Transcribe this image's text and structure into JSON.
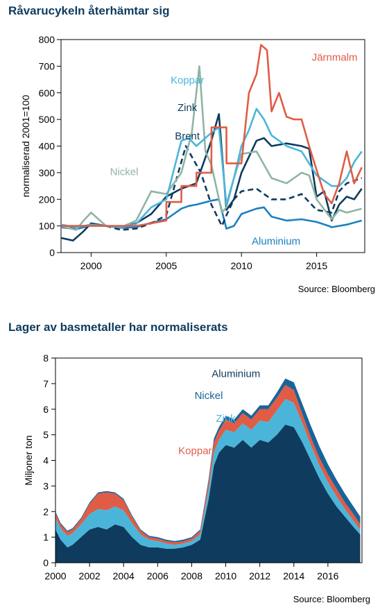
{
  "chart_data": [
    {
      "type": "line",
      "title": "Råvarucykeln återhämtar sig",
      "ylabel": "normaliserad 2001=100",
      "xlabel": "",
      "xlim": [
        1998,
        2018.2
      ],
      "ylim": [
        0,
        800
      ],
      "xticks": [
        2000,
        2005,
        2010,
        2015
      ],
      "yticks": [
        0,
        100,
        200,
        300,
        400,
        500,
        600,
        700,
        800
      ],
      "source": "Source: Bloomberg",
      "series": [
        {
          "name": "Aluminium",
          "color": "#1b7fc1",
          "dash": false,
          "x": [
            1998,
            1999,
            2000,
            2001,
            2002,
            2003,
            2004,
            2005,
            2006,
            2006.5,
            2007,
            2008,
            2008.5,
            2009,
            2009.5,
            2010,
            2011,
            2011.5,
            2012,
            2013,
            2014,
            2015,
            2015.8,
            2016,
            2017,
            2018
          ],
          "y": [
            95,
            88,
            102,
            100,
            93,
            95,
            112,
            125,
            165,
            175,
            180,
            195,
            200,
            90,
            100,
            145,
            165,
            170,
            135,
            120,
            125,
            115,
            100,
            95,
            105,
            120
          ]
        },
        {
          "name": "Brent",
          "color": "#0e3b5e",
          "dash": false,
          "x": [
            1998,
            1998.8,
            1999.5,
            2000,
            2001,
            2002,
            2003,
            2004,
            2005,
            2006,
            2007,
            2008,
            2008.5,
            2009,
            2009.5,
            2010,
            2011,
            2011.5,
            2012,
            2013,
            2014,
            2014.5,
            2015,
            2015.5,
            2016,
            2016.5,
            2017,
            2017.5,
            2018
          ],
          "y": [
            55,
            45,
            80,
            110,
            100,
            95,
            110,
            145,
            210,
            240,
            260,
            420,
            520,
            160,
            200,
            300,
            420,
            430,
            400,
            410,
            400,
            390,
            210,
            230,
            120,
            180,
            210,
            200,
            240
          ]
        },
        {
          "name": "Zink",
          "color": "#0e3b5e",
          "dash": true,
          "x": [
            1998,
            1999,
            2000,
            2001,
            2002,
            2003,
            2004,
            2005,
            2005.8,
            2006.3,
            2006.8,
            2007.3,
            2008,
            2008.7,
            2009,
            2009.5,
            2010,
            2011,
            2012,
            2013,
            2014,
            2015,
            2016,
            2016.5,
            2017,
            2018
          ],
          "y": [
            100,
            95,
            105,
            100,
            85,
            90,
            110,
            140,
            300,
            400,
            350,
            300,
            180,
            100,
            140,
            200,
            230,
            240,
            200,
            200,
            220,
            160,
            150,
            230,
            260,
            280
          ]
        },
        {
          "name": "Nickel",
          "color": "#8fb4a4",
          "dash": false,
          "x": [
            1998,
            1999,
            1999.5,
            2000,
            2001,
            2002,
            2003,
            2004,
            2005,
            2006,
            2006.7,
            2007.2,
            2007.6,
            2008,
            2008.7,
            2009,
            2009.5,
            2010,
            2011,
            2012,
            2013,
            2014,
            2014.5,
            2015,
            2016,
            2016.5,
            2017,
            2018
          ],
          "y": [
            100,
            85,
            120,
            150,
            100,
            95,
            120,
            230,
            220,
            300,
            450,
            700,
            380,
            330,
            150,
            170,
            280,
            370,
            380,
            280,
            260,
            300,
            290,
            200,
            125,
            160,
            150,
            165
          ]
        },
        {
          "name": "Koppar",
          "color": "#4ab5d9",
          "dash": false,
          "x": [
            1998,
            1999,
            2000,
            2001,
            2002,
            2003,
            2004,
            2005,
            2006,
            2006.5,
            2007,
            2008,
            2008.5,
            2009,
            2009.5,
            2010,
            2010.5,
            2011,
            2011.5,
            2012,
            2013,
            2014,
            2015,
            2016,
            2016.5,
            2017,
            2017.5,
            2018
          ],
          "y": [
            105,
            95,
            105,
            100,
            95,
            108,
            170,
            200,
            420,
            430,
            400,
            450,
            470,
            180,
            280,
            400,
            460,
            540,
            500,
            440,
            400,
            380,
            290,
            250,
            250,
            280,
            340,
            380
          ]
        },
        {
          "name": "Järnmalm",
          "color": "#e05c45",
          "dash": false,
          "x": [
            1998,
            2000,
            2001,
            2002,
            2003,
            2004,
            2005,
            2005.01,
            2006,
            2006.01,
            2007,
            2007.01,
            2008,
            2008.01,
            2009,
            2009.01,
            2010,
            2010.5,
            2011,
            2011.3,
            2011.7,
            2012,
            2012.5,
            2013,
            2013.5,
            2014,
            2014.5,
            2015,
            2015.5,
            2016,
            2016.5,
            2017,
            2017.5,
            2018
          ],
          "y": [
            100,
            100,
            100,
            100,
            100,
            110,
            120,
            190,
            190,
            250,
            250,
            300,
            300,
            470,
            470,
            335,
            335,
            600,
            670,
            780,
            760,
            530,
            600,
            510,
            500,
            500,
            400,
            310,
            220,
            185,
            260,
            380,
            260,
            320
          ]
        }
      ],
      "labels": [
        {
          "text": "Koppar",
          "series": "Koppar",
          "x": 2006.4,
          "y": 635
        },
        {
          "text": "Zink",
          "series": "Zink",
          "x": 2006.4,
          "y": 532
        },
        {
          "text": "Brent",
          "series": "Brent",
          "x": 2006.4,
          "y": 425
        },
        {
          "text": "Nickel",
          "series": "Nickel",
          "x": 2002.2,
          "y": 290
        },
        {
          "text": "Järnmalm",
          "series": "Järnmalm",
          "x": 2016.2,
          "y": 720
        },
        {
          "text": "Aluminium",
          "series": "Aluminium",
          "x": 2012.3,
          "y": 30
        }
      ]
    },
    {
      "type": "area",
      "stacked": true,
      "title": "Lager av basmetaller har normaliserats",
      "ylabel": "Miljoner ton",
      "xlabel": "",
      "xlim": [
        2000,
        2018
      ],
      "ylim": [
        0,
        8
      ],
      "xticks": [
        2000,
        2002,
        2004,
        2006,
        2008,
        2010,
        2012,
        2014,
        2016
      ],
      "yticks": [
        0,
        1,
        2,
        3,
        4,
        5,
        6,
        7,
        8
      ],
      "source": "Source: Bloomberg",
      "x": [
        2000,
        2000.3,
        2000.7,
        2001,
        2001.5,
        2002,
        2002.5,
        2003,
        2003.5,
        2004,
        2004.5,
        2005,
        2005.5,
        2006,
        2006.5,
        2007,
        2007.5,
        2008,
        2008.5,
        2009,
        2009.3,
        2009.6,
        2010,
        2010.5,
        2011,
        2011.5,
        2012,
        2012.5,
        2013,
        2013.5,
        2014,
        2014.5,
        2015,
        2015.5,
        2016,
        2016.5,
        2017,
        2017.5,
        2017.9
      ],
      "series": [
        {
          "name": "Aluminium",
          "color": "#0e3b5e",
          "values": [
            1.3,
            0.9,
            0.6,
            0.7,
            1.0,
            1.3,
            1.4,
            1.3,
            1.5,
            1.4,
            1.0,
            0.7,
            0.6,
            0.6,
            0.55,
            0.55,
            0.6,
            0.7,
            0.9,
            2.5,
            3.8,
            4.3,
            4.6,
            4.5,
            4.8,
            4.5,
            4.8,
            4.7,
            5.0,
            5.4,
            5.3,
            4.7,
            4.0,
            3.3,
            2.7,
            2.2,
            1.8,
            1.4,
            1.1
          ]
        },
        {
          "name": "Zink",
          "color": "#4ab5d9",
          "values": [
            0.45,
            0.45,
            0.45,
            0.45,
            0.5,
            0.6,
            0.7,
            0.75,
            0.7,
            0.65,
            0.55,
            0.4,
            0.3,
            0.25,
            0.2,
            0.15,
            0.15,
            0.15,
            0.2,
            0.4,
            0.5,
            0.5,
            0.6,
            0.6,
            0.65,
            0.7,
            0.75,
            0.8,
            0.95,
            1.0,
            0.95,
            0.75,
            0.6,
            0.5,
            0.45,
            0.4,
            0.3,
            0.25,
            0.2
          ]
        },
        {
          "name": "Koppar",
          "color": "#e05c45",
          "values": [
            0.2,
            0.15,
            0.15,
            0.15,
            0.2,
            0.4,
            0.6,
            0.7,
            0.5,
            0.4,
            0.25,
            0.15,
            0.1,
            0.1,
            0.1,
            0.1,
            0.1,
            0.1,
            0.15,
            0.3,
            0.4,
            0.35,
            0.4,
            0.35,
            0.4,
            0.4,
            0.45,
            0.5,
            0.5,
            0.55,
            0.5,
            0.35,
            0.3,
            0.3,
            0.3,
            0.3,
            0.25,
            0.25,
            0.2
          ]
        },
        {
          "name": "Nickel",
          "color": "#1a6399",
          "values": [
            0.05,
            0.05,
            0.05,
            0.05,
            0.05,
            0.05,
            0.05,
            0.05,
            0.05,
            0.05,
            0.05,
            0.05,
            0.05,
            0.05,
            0.05,
            0.05,
            0.05,
            0.05,
            0.05,
            0.1,
            0.15,
            0.15,
            0.15,
            0.15,
            0.15,
            0.15,
            0.15,
            0.15,
            0.2,
            0.25,
            0.3,
            0.4,
            0.45,
            0.45,
            0.4,
            0.35,
            0.35,
            0.3,
            0.3
          ]
        }
      ],
      "labels": [
        {
          "text": "Aluminium",
          "series": "Aluminium",
          "x": 2010.6,
          "y": 7.25
        },
        {
          "text": "Nickel",
          "series": "Nickel",
          "x": 2009.0,
          "y": 6.4
        },
        {
          "text": "Zink",
          "series": "Zink",
          "x": 2010.0,
          "y": 5.5
        },
        {
          "text": "Koppar",
          "series": "Koppar",
          "x": 2008.2,
          "y": 4.25
        }
      ]
    }
  ]
}
